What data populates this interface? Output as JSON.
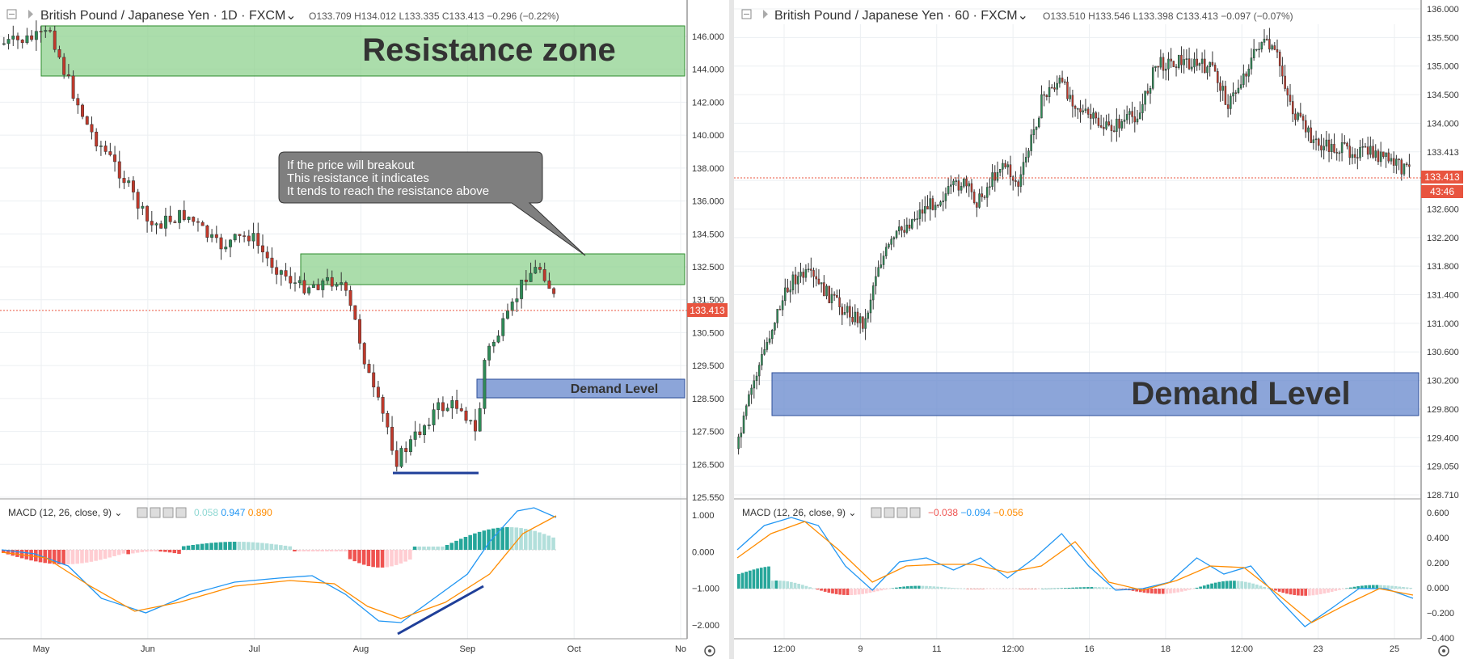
{
  "colors": {
    "up": "#26a69a",
    "down": "#ef5350",
    "candle_body_up": "#2e8b57",
    "candle_body_down": "#c0392b",
    "resistance_zone": "#8fd18f",
    "demand_zone": "#6f8fcf",
    "macd_line": "#2196f3",
    "signal_line": "#ff8c00",
    "last_price": "#e8543f"
  },
  "left": {
    "header": {
      "symbol": "British Pound / Japanese Yen",
      "interval": "1D",
      "exchange": "FXCM",
      "o": "O133.709",
      "h": "H134.012",
      "l": "L133.335",
      "c": "C133.413",
      "chg": "−0.296 (−0.22%)"
    },
    "price_ticks": [
      "146.000",
      "144.000",
      "142.000",
      "140.000",
      "138.000",
      "136.000",
      "134.500",
      "132.500",
      "131.500",
      "130.500",
      "129.500",
      "128.500",
      "127.500",
      "126.500",
      "125.550"
    ],
    "last_price": "133.413",
    "resistance_label": "Resistance zone",
    "demand_label": "Demand Level",
    "callout": [
      "If the price will breakout",
      "This resistance it indicates",
      "It tends to reach the resistance above"
    ],
    "macd": {
      "title": "MACD (12, 26, close, 9)",
      "hist": "0.058",
      "macd": "0.947",
      "signal": "0.890",
      "ticks": [
        "1.000",
        "0.000",
        "−1.000",
        "−2.000"
      ]
    },
    "time_ticks": [
      "May",
      "Jun",
      "Jul",
      "Aug",
      "Sep",
      "Oct",
      "No"
    ]
  },
  "right": {
    "header": {
      "symbol": "British Pound / Japanese Yen",
      "interval": "60",
      "exchange": "FXCM",
      "o": "O133.510",
      "h": "H133.546",
      "l": "L133.398",
      "c": "C133.413",
      "chg": "−0.097 (−0.07%)"
    },
    "price_ticks": [
      "136.000",
      "135.500",
      "135.000",
      "134.500",
      "134.000",
      "133.413",
      "133.000",
      "132.600",
      "132.200",
      "131.800",
      "131.400",
      "131.000",
      "130.600",
      "130.200",
      "129.800",
      "129.400",
      "129.050",
      "128.710"
    ],
    "last_price": "133.413",
    "countdown": "43:46",
    "demand_label": "Demand Level",
    "macd": {
      "title": "MACD (12, 26, close, 9)",
      "hist": "−0.038",
      "macd": "−0.094",
      "signal": "−0.056",
      "ticks": [
        "0.600",
        "0.400",
        "0.200",
        "0.000",
        "−0.200",
        "−0.400"
      ]
    },
    "time_ticks": [
      "12:00",
      "9",
      "11",
      "12:00",
      "16",
      "18",
      "12:00",
      "23",
      "25"
    ]
  }
}
